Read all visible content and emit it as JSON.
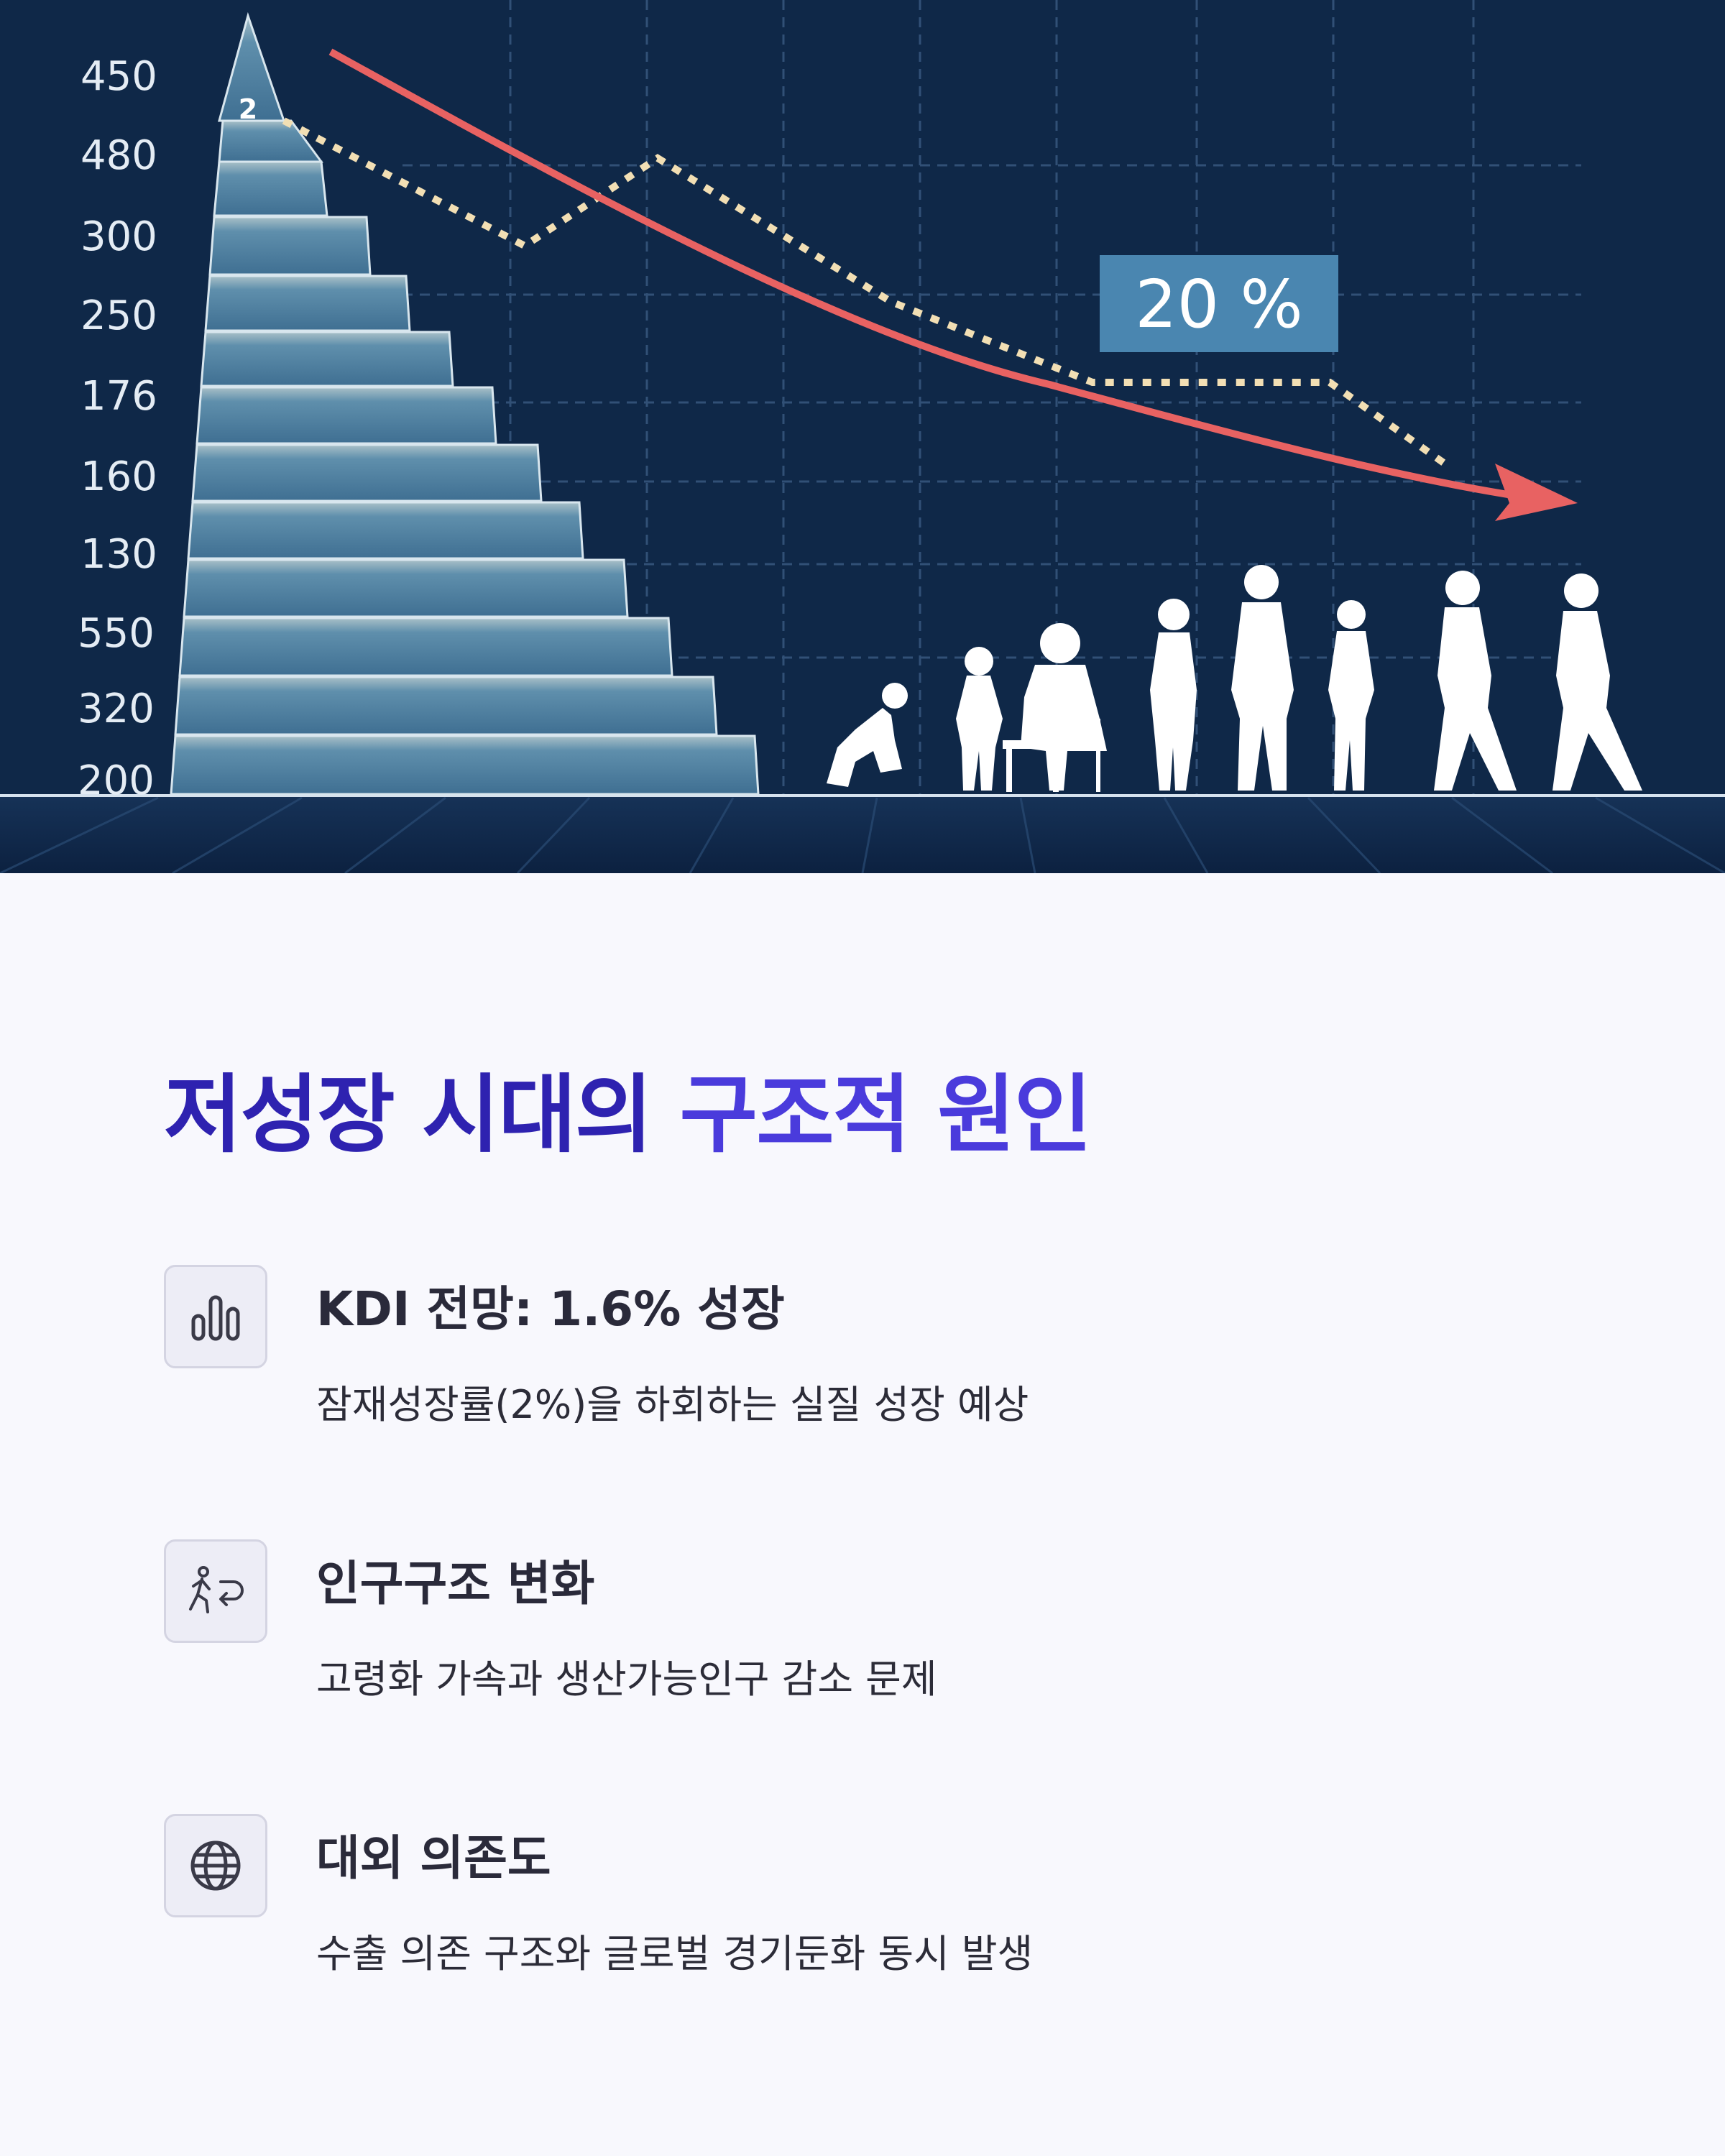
{
  "hero": {
    "y_labels": [
      "450",
      "480",
      "300",
      "250",
      "176",
      "160",
      "130",
      "550",
      "320",
      "200"
    ],
    "peak_label": "2",
    "percent_badge": "20 %",
    "colors": {
      "background": "#0f2848",
      "trend_line": "#e86262",
      "dotted_line": "#f2dfb4",
      "pyramid": "#4a7fa0",
      "badge": "#4a86b0"
    }
  },
  "title": {
    "part1": "저성장 시대의",
    "part2": "구조적 원인"
  },
  "items": [
    {
      "icon": "bar-chart-icon",
      "title": "KDI 전망: 1.6% 성장",
      "desc": "잠재성장률(2%)을 하회하는 실질 성장 예상"
    },
    {
      "icon": "person-walking-icon",
      "title": "인구구조 변화",
      "desc": "고령화 가속과 생산가능인구 감소 문제"
    },
    {
      "icon": "globe-icon",
      "title": "대외 의존도",
      "desc": "수출 의존 구조와 글로벌 경기둔화 동시 발생"
    }
  ]
}
